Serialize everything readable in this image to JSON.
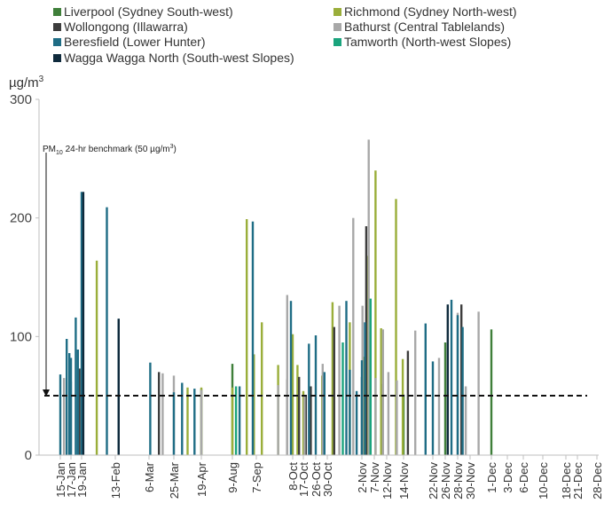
{
  "chart_data": {
    "type": "bar",
    "ylabel": "µg/m",
    "ylabel_sup": "3",
    "ylim": [
      0,
      300
    ],
    "yticks": [
      0,
      100,
      200,
      300
    ],
    "grid": false,
    "legend_position": "top",
    "categories": [
      "15-Jan",
      "17-Jan",
      "19-Jan",
      "13-Feb",
      "6-Mar",
      "25-Mar",
      "19-Apr",
      "9-Aug",
      "7-Sep",
      "8-Oct",
      "17-Oct",
      "26-Oct",
      "30-Oct",
      "2-Nov",
      "7-Nov",
      "12-Nov",
      "14-Nov",
      "22-Nov",
      "26-Nov",
      "28-Nov",
      "30-Nov",
      "1-Dec",
      "3-Dec",
      "6-Dec",
      "10-Dec",
      "18-Dec",
      "21-Dec",
      "28-Dec"
    ],
    "benchmark": {
      "value": 50,
      "label_prefix": "PM",
      "label_sub": "10",
      "label_main": " 24-hr benchmark (50 µg/m",
      "label_sup": "3",
      "label_end": ")"
    },
    "series": [
      {
        "name": "Liverpool (Sydney South-west)",
        "color": "#3f7f3a",
        "points": [
          [
            6.0,
            56
          ],
          [
            7.0,
            77
          ],
          [
            16.0,
            51
          ],
          [
            18.0,
            95
          ],
          [
            21.0,
            106
          ]
        ]
      },
      {
        "name": "Richmond (Sydney North-west)",
        "color": "#9aae3a",
        "points": [
          [
            2.45,
            164
          ],
          [
            5.5,
            57
          ],
          [
            6.0,
            57
          ],
          [
            7.0,
            57
          ],
          [
            7.6,
            199
          ],
          [
            7.9,
            85
          ],
          [
            8.15,
            112
          ],
          [
            8.6,
            76
          ],
          [
            9.0,
            102
          ],
          [
            9.45,
            76
          ],
          [
            10.0,
            54
          ],
          [
            11.55,
            67
          ],
          [
            12.15,
            129
          ],
          [
            12.65,
            112
          ],
          [
            13.15,
            83
          ],
          [
            13.4,
            168
          ],
          [
            14.1,
            240
          ],
          [
            14.55,
            107
          ],
          [
            15.55,
            216
          ],
          [
            15.95,
            81
          ]
        ]
      },
      {
        "name": "Wollongong (Illawarra)",
        "color": "#3d3d3d",
        "points": [
          [
            1.8,
            73
          ],
          [
            4.4,
            70
          ],
          [
            8.85,
            64
          ],
          [
            9.6,
            66
          ],
          [
            10.2,
            50
          ],
          [
            10.6,
            58
          ],
          [
            12.2,
            108
          ],
          [
            13.0,
            66
          ],
          [
            13.35,
            193
          ],
          [
            13.65,
            104
          ],
          [
            14.7,
            60
          ],
          [
            16.15,
            88
          ],
          [
            19.3,
            127
          ]
        ]
      },
      {
        "name": "Bathurst (Central Tablelands)",
        "color": "#a8a8a8",
        "points": [
          [
            0.35,
            65
          ],
          [
            1.0,
            62
          ],
          [
            4.55,
            69
          ],
          [
            5.0,
            67
          ],
          [
            6.0,
            55
          ],
          [
            8.6,
            59
          ],
          [
            8.85,
            135
          ],
          [
            10.1,
            50
          ],
          [
            11.6,
            77
          ],
          [
            12.35,
            126
          ],
          [
            12.75,
            200
          ],
          [
            13.05,
            126
          ],
          [
            13.55,
            266
          ],
          [
            14.1,
            65
          ],
          [
            14.7,
            106
          ],
          [
            15.1,
            70
          ],
          [
            15.6,
            63
          ],
          [
            16.4,
            105
          ],
          [
            17.5,
            82
          ],
          [
            19.0,
            120
          ],
          [
            19.65,
            58
          ],
          [
            20.4,
            121
          ]
        ]
      },
      {
        "name": "Beresfield (Lower Hunter)",
        "color": "#1f6d85",
        "points": [
          [
            0.0,
            68
          ],
          [
            0.6,
            98
          ],
          [
            0.85,
            86
          ],
          [
            1.0,
            82
          ],
          [
            1.45,
            116
          ],
          [
            1.65,
            89
          ],
          [
            2.0,
            222
          ],
          [
            2.75,
            209
          ],
          [
            3.1,
            115
          ],
          [
            4.05,
            78
          ],
          [
            5.0,
            53
          ],
          [
            5.3,
            61
          ],
          [
            5.75,
            56
          ],
          [
            7.3,
            58
          ],
          [
            7.85,
            197
          ],
          [
            8.95,
            130
          ],
          [
            10.45,
            94
          ],
          [
            11.0,
            101
          ],
          [
            11.75,
            70
          ],
          [
            12.55,
            130
          ],
          [
            12.65,
            72
          ],
          [
            12.85,
            54
          ],
          [
            13.0,
            80
          ],
          [
            13.25,
            112
          ],
          [
            16.75,
            111
          ],
          [
            17.0,
            79
          ],
          [
            18.5,
            131
          ],
          [
            19.0,
            118
          ],
          [
            19.4,
            108
          ]
        ]
      },
      {
        "name": "Tamworth (North-west Slopes)",
        "color": "#1ba47d",
        "points": [
          [
            7.15,
            58
          ],
          [
            12.45,
            95
          ],
          [
            13.7,
            132
          ]
        ]
      },
      {
        "name": "Wagga Wagga North (South-west Slopes)",
        "color": "#0f2a3c",
        "points": [
          [
            2.05,
            222
          ],
          [
            3.1,
            115
          ],
          [
            18.2,
            127
          ]
        ]
      }
    ]
  }
}
